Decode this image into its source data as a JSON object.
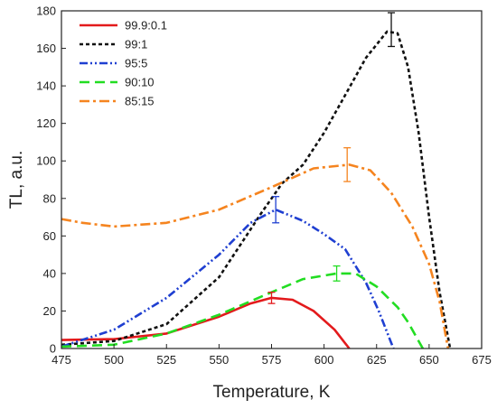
{
  "chart_data": {
    "type": "line",
    "xlabel": "Temperature, K",
    "ylabel": "TL, a.u.",
    "xlim": [
      475,
      675
    ],
    "ylim": [
      0,
      180
    ],
    "xticks": [
      475,
      500,
      525,
      550,
      575,
      600,
      625,
      650,
      675
    ],
    "yticks": [
      0,
      20,
      40,
      60,
      80,
      100,
      120,
      140,
      160,
      180
    ],
    "grid": false,
    "legend_position": "top-left",
    "series": [
      {
        "name": "99.9:0.1",
        "color": "#e31a1c",
        "dash": "solid",
        "points": [
          [
            475,
            4.5
          ],
          [
            500,
            5
          ],
          [
            525,
            8
          ],
          [
            550,
            17
          ],
          [
            565,
            24
          ],
          [
            575,
            27
          ],
          [
            585,
            26
          ],
          [
            595,
            20
          ],
          [
            605,
            10
          ],
          [
            612,
            0
          ]
        ],
        "error_bar": {
          "x": 575,
          "y": 27,
          "err": 3
        }
      },
      {
        "name": "99:1",
        "color": "#111111",
        "dash": "short-dash",
        "points": [
          [
            475,
            2
          ],
          [
            500,
            4
          ],
          [
            525,
            13
          ],
          [
            550,
            38
          ],
          [
            570,
            72
          ],
          [
            580,
            88
          ],
          [
            590,
            98
          ],
          [
            600,
            115
          ],
          [
            610,
            135
          ],
          [
            620,
            155
          ],
          [
            630,
            169
          ],
          [
            635,
            168
          ],
          [
            640,
            150
          ],
          [
            645,
            115
          ],
          [
            650,
            70
          ],
          [
            655,
            30
          ],
          [
            660,
            0
          ]
        ],
        "error_bar": {
          "x": 632,
          "y": 170,
          "err": 9
        }
      },
      {
        "name": "95:5",
        "color": "#1f3fd1",
        "dash": "dash-dot-dot",
        "points": [
          [
            475,
            1
          ],
          [
            500,
            10
          ],
          [
            525,
            27
          ],
          [
            550,
            50
          ],
          [
            565,
            67
          ],
          [
            577,
            74
          ],
          [
            590,
            68
          ],
          [
            600,
            61
          ],
          [
            610,
            53
          ],
          [
            620,
            35
          ],
          [
            626,
            20
          ],
          [
            633,
            0
          ]
        ],
        "error_bar": {
          "x": 577,
          "y": 74,
          "err": 7
        }
      },
      {
        "name": "90:10",
        "color": "#22dd22",
        "dash": "long-dash",
        "points": [
          [
            475,
            1
          ],
          [
            500,
            2
          ],
          [
            525,
            8
          ],
          [
            550,
            18
          ],
          [
            575,
            30
          ],
          [
            590,
            37
          ],
          [
            606,
            40
          ],
          [
            615,
            40
          ],
          [
            625,
            33
          ],
          [
            635,
            22
          ],
          [
            640,
            14
          ],
          [
            647,
            0
          ]
        ],
        "error_bar": {
          "x": 606,
          "y": 40,
          "err": 4
        }
      },
      {
        "name": "85:15",
        "color": "#f5841f",
        "dash": "dash-dot",
        "points": [
          [
            475,
            69
          ],
          [
            485,
            67
          ],
          [
            500,
            65
          ],
          [
            525,
            67
          ],
          [
            550,
            74
          ],
          [
            575,
            86
          ],
          [
            595,
            96
          ],
          [
            612,
            98
          ],
          [
            622,
            95
          ],
          [
            632,
            83
          ],
          [
            642,
            65
          ],
          [
            650,
            45
          ],
          [
            655,
            25
          ],
          [
            659,
            0
          ]
        ],
        "error_bar": {
          "x": 611,
          "y": 98,
          "err": 9
        }
      }
    ]
  }
}
